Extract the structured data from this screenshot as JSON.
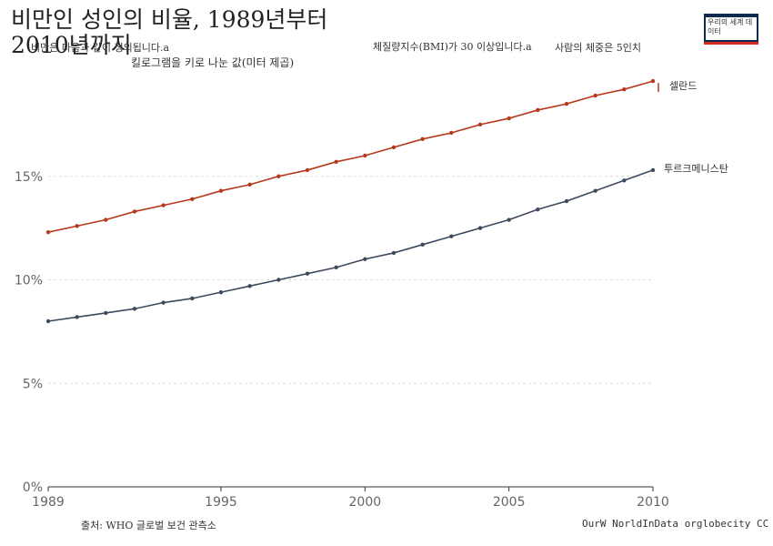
{
  "header": {
    "title": "비만인 성인의 비율, 1989년부터 2010년까지",
    "subtitle_a": "비만은 다음과 같이 정의됩니다.a",
    "subtitle_b": "체질량지수(BMI)가 30 이상입니다.a",
    "subtitle_c": "사람의 체중은 5인치",
    "subtitle_d": "킬로그램을 키로 나눈 값(미터 제곱)"
  },
  "logo": {
    "text": "우리의 세계 데이터"
  },
  "footer": {
    "source": "출처: WHO 글로벌 보건 관측소",
    "credit": "OurW NorldInData orglobecity CC BY"
  },
  "colors": {
    "series_1": "#b5391a",
    "series_2": "#3d4a5e",
    "grid": "#dddddd",
    "axis": "#333333"
  },
  "chart_data": {
    "type": "line",
    "title": "비만인 성인의 비율, 1989년부터 2010년까지",
    "xlabel": "",
    "ylabel": "",
    "xlim": [
      1989,
      2010
    ],
    "ylim": [
      0,
      20
    ],
    "x_ticks": [
      1989,
      1995,
      2000,
      2005,
      2010
    ],
    "x_tick_labels": [
      "1989",
      "1995",
      "2000",
      "2005",
      "2010"
    ],
    "y_ticks": [
      0,
      5,
      10,
      15
    ],
    "y_tick_labels": [
      "0%",
      "5%",
      "10%",
      "15%"
    ],
    "grid": true,
    "x": [
      1989,
      1990,
      1991,
      1992,
      1993,
      1994,
      1995,
      1996,
      1997,
      1998,
      1999,
      2000,
      2001,
      2002,
      2003,
      2004,
      2005,
      2006,
      2007,
      2008,
      2009,
      2010
    ],
    "series": [
      {
        "name": "셀란드",
        "values": [
          12.3,
          12.6,
          12.9,
          13.3,
          13.6,
          13.9,
          14.3,
          14.6,
          15.0,
          15.3,
          15.7,
          16.0,
          16.4,
          16.8,
          17.1,
          17.5,
          17.8,
          18.2,
          18.5,
          18.9,
          19.2,
          19.6
        ]
      },
      {
        "name": "투르크메니스탄",
        "values": [
          8.0,
          8.2,
          8.4,
          8.6,
          8.9,
          9.1,
          9.4,
          9.7,
          10.0,
          10.3,
          10.6,
          11.0,
          11.3,
          11.7,
          12.1,
          12.5,
          12.9,
          13.4,
          13.8,
          14.3,
          14.8,
          15.3
        ]
      }
    ]
  }
}
